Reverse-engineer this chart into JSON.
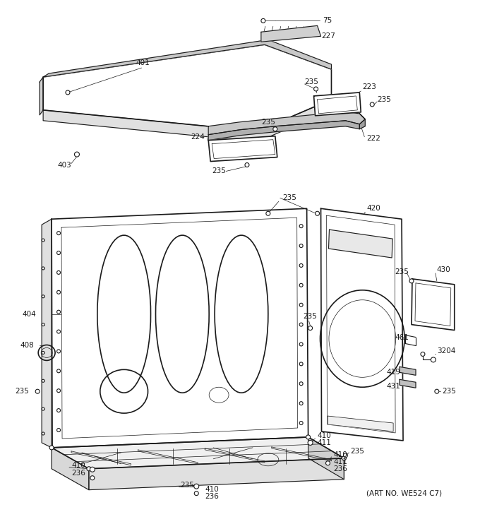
{
  "art_no": "(ART NO. WE524 C7)",
  "bg": "#ffffff",
  "lc": "#1a1a1a",
  "fig_w": 6.8,
  "fig_h": 7.25,
  "dpi": 100
}
